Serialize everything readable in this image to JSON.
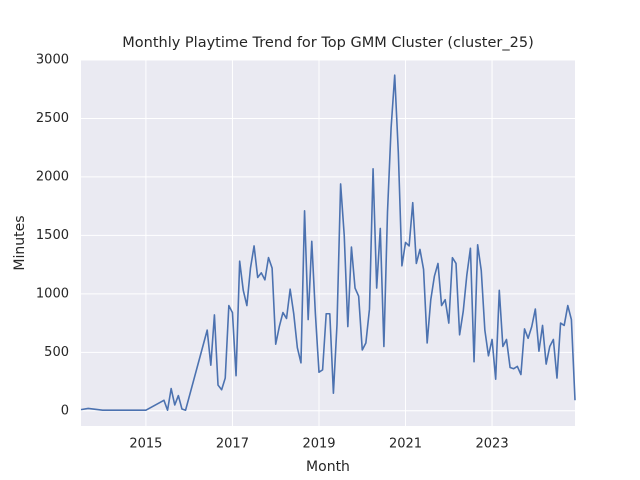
{
  "chart_data": {
    "type": "line",
    "title": "Monthly Playtime Trend for Top GMM Cluster (cluster_25)",
    "x_label": "Month",
    "y_label": "Minutes",
    "x": [
      "2013-07",
      "2013-09",
      "2014-01",
      "2015-01",
      "2015-06",
      "2015-07",
      "2015-08",
      "2015-09",
      "2015-10",
      "2015-11",
      "2015-12",
      "2016-06",
      "2016-07",
      "2016-08",
      "2016-09",
      "2016-10",
      "2016-11",
      "2016-12",
      "2017-01",
      "2017-02",
      "2017-03",
      "2017-04",
      "2017-05",
      "2017-06",
      "2017-07",
      "2017-08",
      "2017-09",
      "2017-10",
      "2017-11",
      "2017-12",
      "2018-01",
      "2018-02",
      "2018-03",
      "2018-04",
      "2018-05",
      "2018-06",
      "2018-07",
      "2018-08",
      "2018-09",
      "2018-10",
      "2018-11",
      "2018-12",
      "2019-01",
      "2019-02",
      "2019-03",
      "2019-04",
      "2019-05",
      "2019-06",
      "2019-07",
      "2019-08",
      "2019-09",
      "2019-10",
      "2019-11",
      "2019-12",
      "2020-01",
      "2020-02",
      "2020-03",
      "2020-04",
      "2020-05",
      "2020-06",
      "2020-07",
      "2020-08",
      "2020-09",
      "2020-10",
      "2020-11",
      "2020-12",
      "2021-01",
      "2021-02",
      "2021-03",
      "2021-04",
      "2021-05",
      "2021-06",
      "2021-07",
      "2021-08",
      "2021-09",
      "2021-10",
      "2021-11",
      "2021-12",
      "2022-01",
      "2022-02",
      "2022-03",
      "2022-04",
      "2022-05",
      "2022-06",
      "2022-07",
      "2022-08",
      "2022-09",
      "2022-10",
      "2022-11",
      "2022-12",
      "2023-01",
      "2023-02",
      "2023-03",
      "2023-04",
      "2023-05",
      "2023-06",
      "2023-07",
      "2023-08",
      "2023-09",
      "2023-10",
      "2023-11",
      "2023-12",
      "2024-01",
      "2024-02",
      "2024-03",
      "2024-04",
      "2024-05",
      "2024-06",
      "2024-07",
      "2024-08",
      "2024-09",
      "2024-10",
      "2024-11",
      "2024-12"
    ],
    "values": [
      10,
      20,
      5,
      5,
      90,
      5,
      190,
      50,
      130,
      15,
      5,
      690,
      390,
      820,
      220,
      180,
      280,
      900,
      840,
      300,
      1280,
      1030,
      900,
      1220,
      1410,
      1140,
      1180,
      1120,
      1310,
      1220,
      570,
      720,
      840,
      790,
      1040,
      830,
      540,
      410,
      1710,
      780,
      1450,
      830,
      330,
      350,
      830,
      830,
      150,
      740,
      1940,
      1500,
      720,
      1400,
      1050,
      980,
      520,
      580,
      870,
      2070,
      1050,
      1560,
      550,
      1700,
      2420,
      2870,
      2210,
      1240,
      1440,
      1410,
      1780,
      1260,
      1380,
      1210,
      580,
      950,
      1150,
      1260,
      900,
      950,
      750,
      1310,
      1260,
      650,
      850,
      1160,
      1390,
      420,
      1420,
      1200,
      690,
      470,
      610,
      270,
      1030,
      550,
      610,
      370,
      360,
      380,
      310,
      700,
      620,
      720,
      870,
      510,
      730,
      400,
      550,
      610,
      280,
      750,
      730,
      900,
      780,
      90
    ],
    "color": "#4c72b0",
    "xlim": [
      "2013-07",
      "2024-12"
    ],
    "xticks": [
      2015,
      2017,
      2019,
      2021,
      2023
    ],
    "ylim": [
      -130,
      3000
    ],
    "yticks": [
      0,
      500,
      1000,
      1500,
      2000,
      2500,
      3000
    ],
    "grid": true
  }
}
